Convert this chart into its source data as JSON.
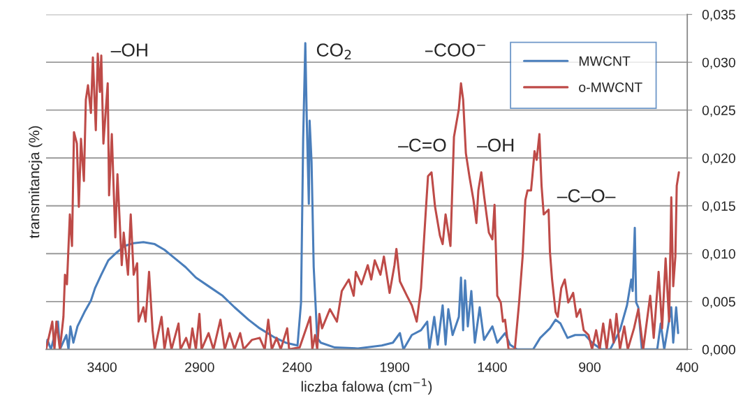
{
  "chart_data": {
    "type": "line",
    "xlabel": "liczba falowa (cm$^{−1}$)",
    "ylabel": "transmitancja (%)",
    "xlim": [
      3687,
      400
    ],
    "xticks": [
      3400,
      2900,
      2400,
      1900,
      1400,
      900,
      400
    ],
    "ylim": [
      0,
      0.035
    ],
    "yticks": [
      {
        "value": 0,
        "label": "0,000"
      },
      {
        "value": 0.005,
        "label": "0,005"
      },
      {
        "value": 0.01,
        "label": "0,010"
      },
      {
        "value": 0.015,
        "label": "0,015"
      },
      {
        "value": 0.02,
        "label": "0,020"
      },
      {
        "value": 0.025,
        "label": "0,025"
      },
      {
        "value": 0.03,
        "label": "0,030"
      },
      {
        "value": 0.035,
        "label": "0,035"
      }
    ],
    "grid": "y",
    "legend": "top right",
    "line_style": "solid",
    "marker": "none",
    "annotations": [
      "–OH",
      "CO$_{2}$",
      "–COO$^{−}$",
      "–C=O",
      "–OH",
      "–C–O–"
    ],
    "series": [
      {
        "name": "MWCNT",
        "color": "#4a7ebb",
        "x": [
          3687,
          3680,
          3662,
          3626,
          3616,
          3583,
          3572,
          3562,
          3547,
          3526,
          3490,
          3457,
          3436,
          3404,
          3368,
          3332,
          3285,
          3238,
          3188,
          3130,
          3080,
          3026,
          2972,
          2919,
          2854,
          2782,
          2721,
          2649,
          2592,
          2520,
          2459,
          2398,
          2380,
          2369,
          2358,
          2351,
          2340,
          2336,
          2326,
          2315,
          2297,
          2279,
          2207,
          2088,
          1966,
          1909,
          1873,
          1855,
          1812,
          1765,
          1733,
          1722,
          1697,
          1679,
          1654,
          1639,
          1625,
          1603,
          1571,
          1560,
          1549,
          1539,
          1525,
          1507,
          1489,
          1464,
          1442,
          1399,
          1374,
          1334,
          1309,
          1273,
          1190,
          1154,
          1104,
          1075,
          1050,
          1014,
          975,
          924,
          888,
          841,
          795,
          745,
          709,
          687,
          680,
          669,
          662,
          651,
          633,
          590,
          554,
          536,
          518,
          482,
          472,
          457,
          447
        ],
        "values": [
          0,
          0.001,
          0,
          0.0029,
          0,
          0.0015,
          0,
          0.0024,
          0.0007,
          0.0024,
          0.0039,
          0.0051,
          0.0064,
          0.0078,
          0.0093,
          0.01,
          0.0108,
          0.0111,
          0.0112,
          0.011,
          0.0104,
          0.0095,
          0.0086,
          0.0075,
          0.0066,
          0.0056,
          0.0044,
          0.0031,
          0.0022,
          0.0013,
          0.0007,
          0.0004,
          0.0049,
          0.022,
          0.032,
          0.0244,
          0.0152,
          0.0239,
          0.0196,
          0.0086,
          0.0012,
          0.0007,
          0.0002,
          0.0001,
          0.0004,
          0.0007,
          0.0017,
          0,
          0.0015,
          0.002,
          0.0029,
          0,
          0.0034,
          0.0005,
          0.0046,
          0.0005,
          0.0042,
          0.0015,
          0.0034,
          0.0075,
          0.002,
          0.0072,
          0.0024,
          0.0061,
          0.0007,
          0.0044,
          0.001,
          0.0024,
          0.0007,
          0.0017,
          0.0005,
          0,
          0,
          0.0012,
          0.0022,
          0.0031,
          0.0027,
          0.0012,
          0.0015,
          0.0015,
          0.0007,
          0,
          0,
          0.002,
          0.0046,
          0.0073,
          0.0061,
          0.0127,
          0.0049,
          0.0044,
          0,
          0,
          0,
          0.0027,
          0,
          0.0044,
          0.0007,
          0.0044,
          0.0017
        ]
      },
      {
        "name": "o-MWCNT",
        "color": "#be4b48",
        "x": [
          3687,
          3655,
          3644,
          3634,
          3616,
          3598,
          3590,
          3580,
          3565,
          3554,
          3544,
          3529,
          3519,
          3508,
          3493,
          3483,
          3472,
          3457,
          3447,
          3432,
          3422,
          3411,
          3404,
          3393,
          3371,
          3364,
          3350,
          3332,
          3321,
          3299,
          3289,
          3267,
          3253,
          3238,
          3220,
          3213,
          3188,
          3177,
          3159,
          3141,
          3130,
          3095,
          3080,
          3062,
          3044,
          3008,
          2998,
          2969,
          2951,
          2937,
          2919,
          2901,
          2890,
          2854,
          2829,
          2793,
          2771,
          2746,
          2721,
          2692,
          2674,
          2631,
          2592,
          2566,
          2548,
          2530,
          2505,
          2484,
          2451,
          2441,
          2387,
          2333,
          2322,
          2308,
          2297,
          2286,
          2272,
          2232,
          2196,
          2171,
          2135,
          2110,
          2099,
          2070,
          2038,
          2020,
          2002,
          1973,
          1955,
          1926,
          1901,
          1891,
          1873,
          1837,
          1812,
          1787,
          1765,
          1740,
          1729,
          1711,
          1693,
          1668,
          1654,
          1639,
          1614,
          1596,
          1571,
          1560,
          1549,
          1535,
          1517,
          1496,
          1481,
          1471,
          1456,
          1442,
          1417,
          1399,
          1388,
          1374,
          1356,
          1345,
          1334,
          1316,
          1284,
          1262,
          1244,
          1230,
          1219,
          1201,
          1194,
          1183,
          1172,
          1158,
          1147,
          1136,
          1111,
          1104,
          1093,
          1075,
          1064,
          1046,
          1028,
          1010,
          985,
          967,
          949,
          931,
          906,
          888,
          867,
          849,
          831,
          813,
          795,
          777,
          763,
          745,
          723,
          705,
          673,
          651,
          626,
          590,
          572,
          547,
          529,
          511,
          493,
          482,
          472,
          461,
          454,
          443
        ],
        "values": [
          0,
          0.0029,
          0,
          0.0029,
          0,
          0.0034,
          0.0078,
          0.0068,
          0.0141,
          0.0108,
          0.0227,
          0.0215,
          0.0149,
          0.022,
          0.0176,
          0.0261,
          0.0276,
          0.0247,
          0.0305,
          0.0229,
          0.0309,
          0.0269,
          0.0307,
          0.0215,
          0.0278,
          0.0161,
          0.0225,
          0.0117,
          0.0183,
          0.0088,
          0.0122,
          0.0078,
          0.0141,
          0.0078,
          0.009,
          0.0029,
          0.0044,
          0.0029,
          0.0081,
          0.002,
          0,
          0.0034,
          0,
          0.0022,
          0,
          0.0027,
          0,
          0.0012,
          0,
          0.0022,
          0,
          0.0037,
          0,
          0.0017,
          0,
          0.0031,
          0,
          0.0017,
          0,
          0.0017,
          0,
          0.001,
          0.0012,
          0,
          0.0031,
          0,
          0.0012,
          0,
          0.0022,
          0,
          0.0002,
          0.0034,
          0,
          0.0015,
          0,
          0.0037,
          0.0022,
          0.0042,
          0.0029,
          0.0061,
          0.0073,
          0.0056,
          0.0081,
          0.0068,
          0.0088,
          0.0073,
          0.0093,
          0.0078,
          0.0097,
          0.0059,
          0.0088,
          0.0105,
          0.0071,
          0.0056,
          0.0046,
          0.0029,
          0.0064,
          0.0146,
          0.0181,
          0.0185,
          0.0149,
          0.0119,
          0.011,
          0.0141,
          0.0108,
          0.0222,
          0.0251,
          0.0278,
          0.0261,
          0.0205,
          0.0181,
          0.0156,
          0.0132,
          0.0166,
          0.0185,
          0.0161,
          0.0122,
          0.0115,
          0.0151,
          0.0056,
          0.0049,
          0.0029,
          0.0031,
          0,
          0,
          0.0049,
          0.0097,
          0.0156,
          0.0166,
          0.0166,
          0.0181,
          0.0207,
          0.0198,
          0.0225,
          0.0171,
          0.0141,
          0.0146,
          0.0102,
          0.0073,
          0.0039,
          0.0034,
          0.0064,
          0.0073,
          0.0049,
          0.0059,
          0.0034,
          0.0042,
          0.002,
          0.0015,
          0,
          0.002,
          0,
          0.0027,
          0,
          0.0031,
          0.0007,
          0.0037,
          0,
          0.0024,
          0,
          0.0022,
          0.0042,
          0,
          0.0056,
          0.0012,
          0.0081,
          0.0022,
          0.0095,
          0.0029,
          0.0159,
          0.0066,
          0.0097,
          0.0171,
          0.0185
        ]
      }
    ]
  }
}
